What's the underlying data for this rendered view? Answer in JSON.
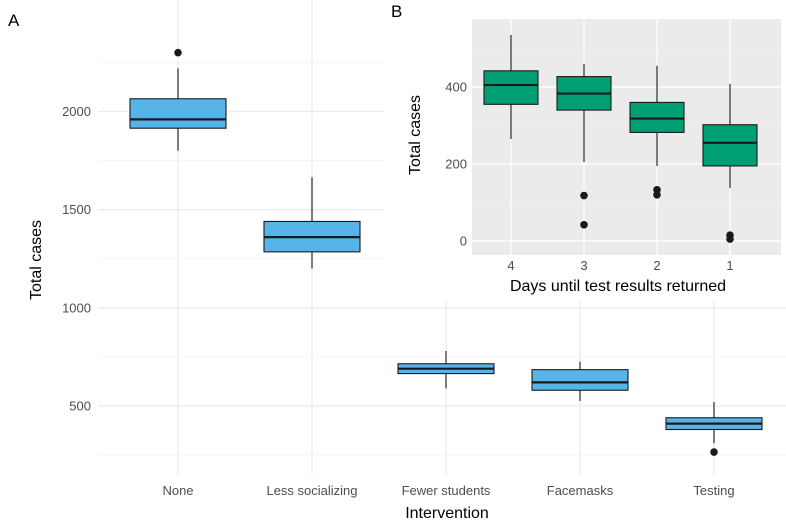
{
  "chart_data": [
    {
      "panel_label": "A",
      "type": "box",
      "xlabel": "Intervention",
      "ylabel": "Total cases",
      "categories": [
        "None",
        "Less socializing",
        "Fewer students",
        "Facemasks",
        "Testing"
      ],
      "ylim": [
        240,
        2400
      ],
      "yticks": [
        500,
        1000,
        1500,
        2000
      ],
      "fill_color": "#56b4e9",
      "grid": true,
      "boxes": [
        {
          "category": "None",
          "lower_whisker": 1800,
          "q1": 1915,
          "median": 1960,
          "q3": 2065,
          "upper_whisker": 2220,
          "outliers": [
            2300
          ]
        },
        {
          "category": "Less socializing",
          "lower_whisker": 1200,
          "q1": 1285,
          "median": 1360,
          "q3": 1440,
          "upper_whisker": 1665,
          "outliers": []
        },
        {
          "category": "Fewer students",
          "lower_whisker": 590,
          "q1": 665,
          "median": 690,
          "q3": 715,
          "upper_whisker": 780,
          "outliers": []
        },
        {
          "category": "Facemasks",
          "lower_whisker": 525,
          "q1": 580,
          "median": 620,
          "q3": 685,
          "upper_whisker": 725,
          "outliers": []
        },
        {
          "category": "Testing",
          "lower_whisker": 310,
          "q1": 380,
          "median": 410,
          "q3": 440,
          "upper_whisker": 520,
          "outliers": [
            265
          ]
        }
      ]
    },
    {
      "panel_label": "B",
      "type": "box",
      "xlabel": "Days until test results returned",
      "ylabel": "Total cases",
      "categories": [
        "4",
        "3",
        "2",
        "1"
      ],
      "ylim": [
        -20,
        535
      ],
      "yticks": [
        0,
        200,
        400
      ],
      "fill_color": "#009e73",
      "background": "#ebebeb",
      "grid": true,
      "boxes": [
        {
          "category": "4",
          "lower_whisker": 265,
          "q1": 355,
          "median": 405,
          "q3": 442,
          "upper_whisker": 535,
          "outliers": []
        },
        {
          "category": "3",
          "lower_whisker": 205,
          "q1": 340,
          "median": 383,
          "q3": 427,
          "upper_whisker": 460,
          "outliers": [
            118,
            42
          ]
        },
        {
          "category": "2",
          "lower_whisker": 195,
          "q1": 282,
          "median": 318,
          "q3": 360,
          "upper_whisker": 455,
          "outliers": [
            133,
            120
          ]
        },
        {
          "category": "1",
          "lower_whisker": 138,
          "q1": 195,
          "median": 255,
          "q3": 302,
          "upper_whisker": 408,
          "outliers": [
            15,
            5
          ]
        }
      ]
    }
  ]
}
